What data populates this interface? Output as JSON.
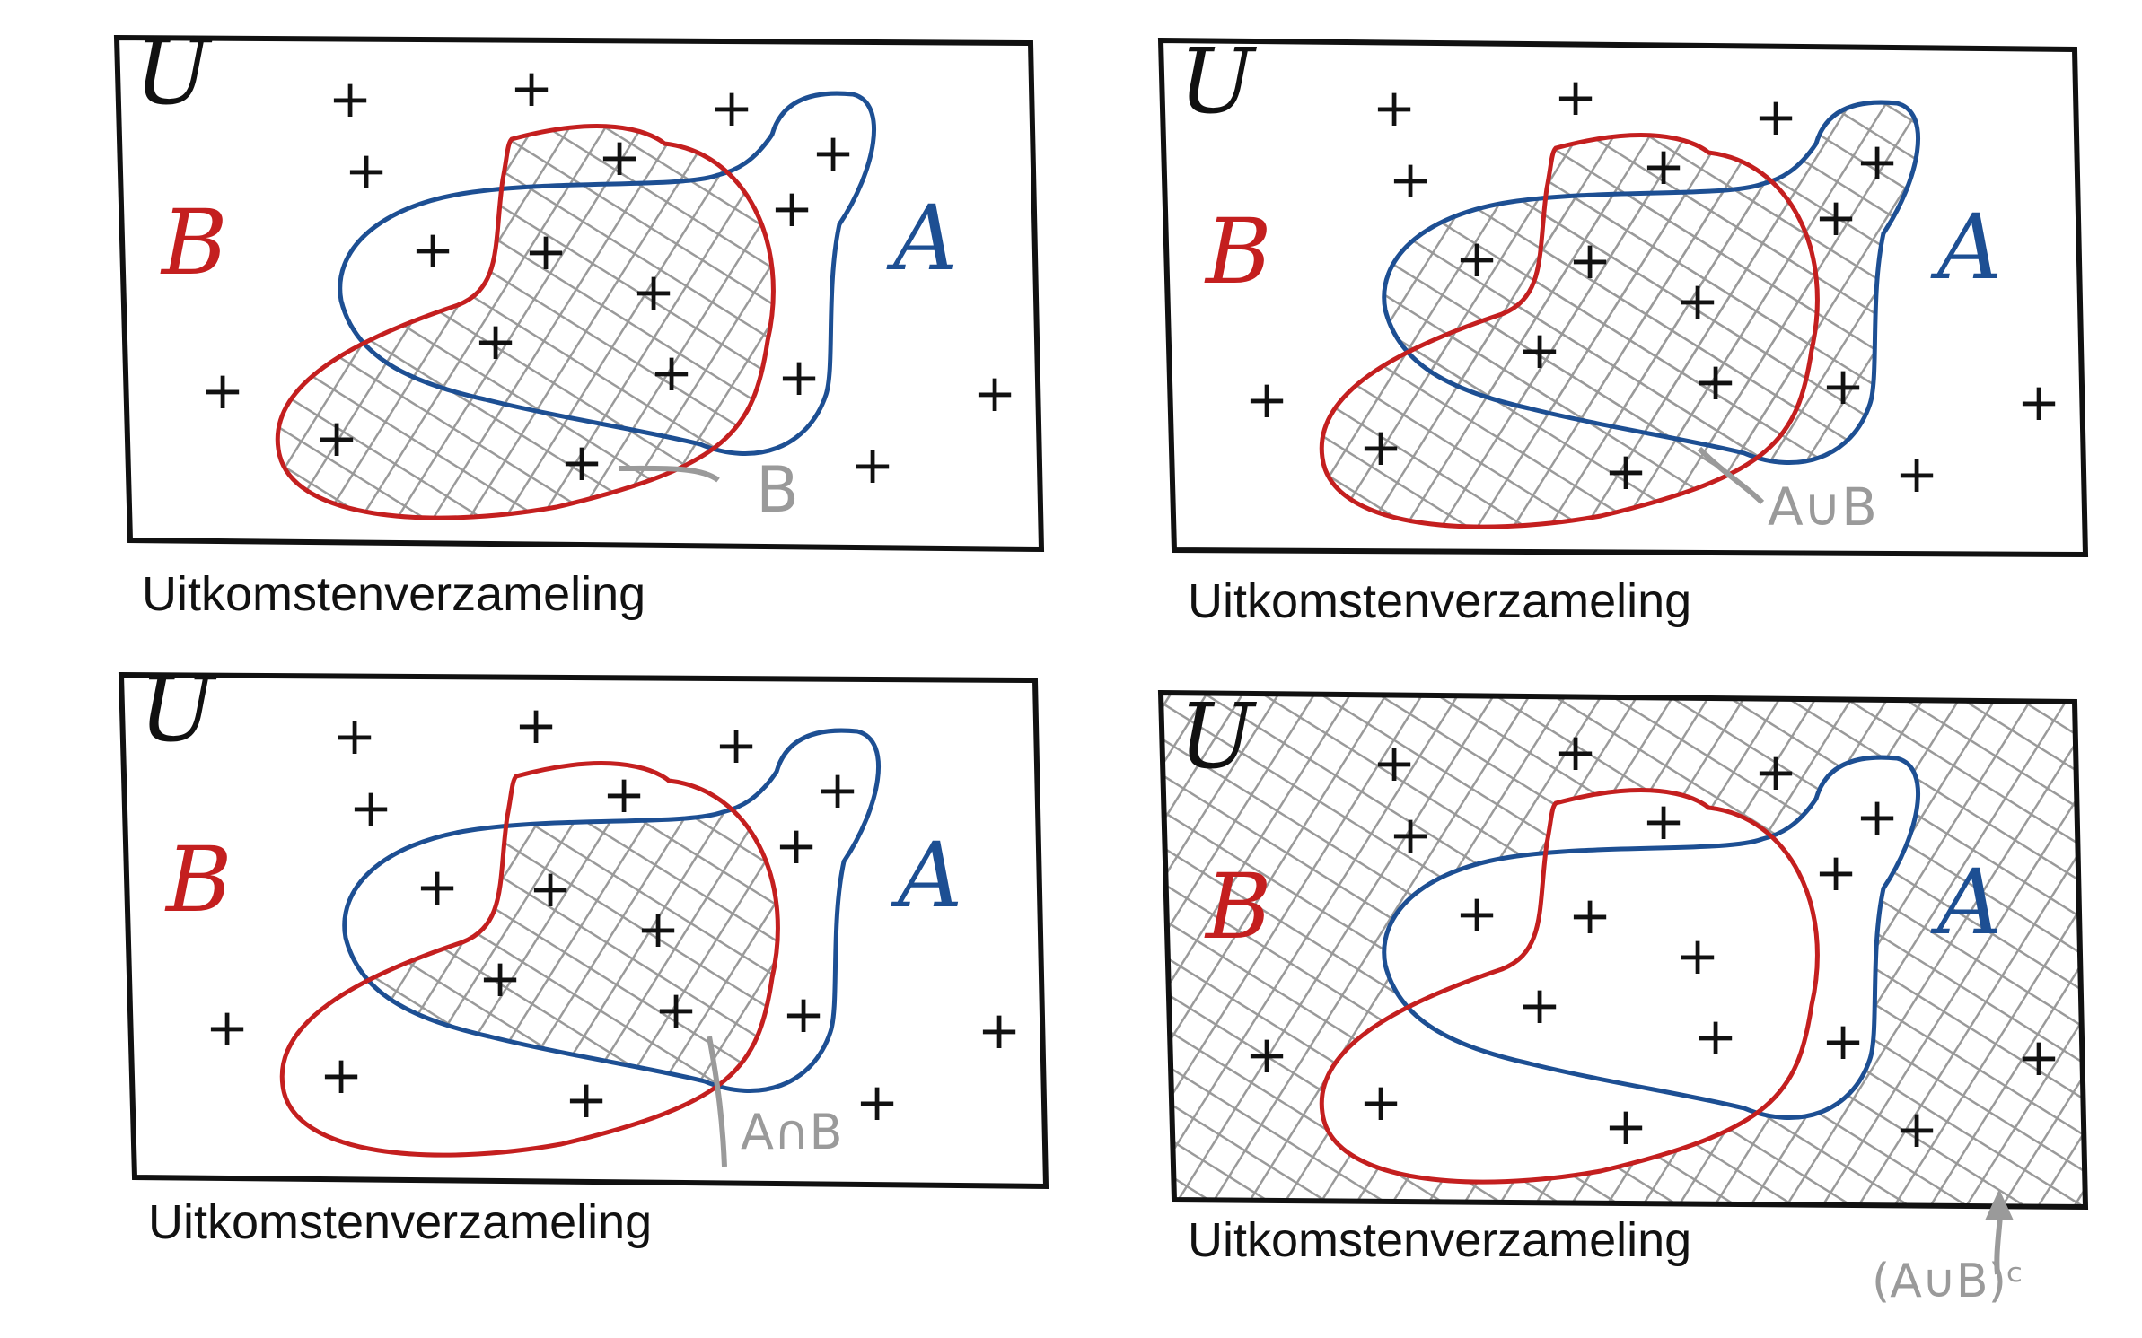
{
  "colors": {
    "ink": "#111111",
    "set_a": "#1d4f93",
    "set_b": "#c41f1f",
    "hatch": "#9a9a9a",
    "annotation": "#9a9a9a"
  },
  "panels": [
    {
      "universe_label": "U",
      "set_b_label": "B",
      "set_a_label": "A",
      "shaded_region": "B",
      "annotation": "B",
      "caption": "Uitkomstenverzameling"
    },
    {
      "universe_label": "U",
      "set_b_label": "B",
      "set_a_label": "A",
      "shaded_region": "A∪B",
      "annotation": "A∪B",
      "caption": "Uitkomstenverzameling"
    },
    {
      "universe_label": "U",
      "set_b_label": "B",
      "set_a_label": "A",
      "shaded_region": "A∩B",
      "annotation": "A∩B",
      "caption": "Uitkomstenverzameling"
    },
    {
      "universe_label": "U",
      "set_b_label": "B",
      "set_a_label": "A",
      "shaded_region": "(A∪B)ᶜ",
      "annotation": "(A∪B)ᶜ",
      "caption": "Uitkomstenverzameling"
    }
  ]
}
